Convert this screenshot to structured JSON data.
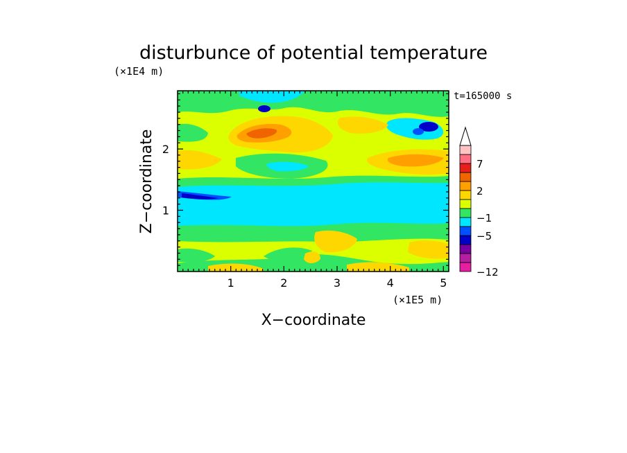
{
  "chart_data": {
    "type": "heatmap",
    "title": "disturbunce of potential temperature",
    "xlabel": "X−coordinate",
    "ylabel": "Z−coordinate",
    "x_unit": "(×1E5 m)",
    "y_unit": "(×1E4 m)",
    "time_label": "t=165000 s",
    "xlim": [
      0,
      5.1
    ],
    "ylim": [
      0,
      2.95
    ],
    "x_ticks": [
      "1",
      "2",
      "3",
      "4",
      "5"
    ],
    "y_ticks": [
      "1",
      "2"
    ],
    "colorbar": {
      "colors": [
        "#e61ea0",
        "#b41ea0",
        "#7800a0",
        "#0000c8",
        "#0050ff",
        "#00e6ff",
        "#32e664",
        "#dcff00",
        "#ffd700",
        "#ffa000",
        "#f06400",
        "#e61e1e",
        "#ff6e82",
        "#ffc3c3"
      ],
      "labels": [
        "−12",
        "−5",
        "−1",
        "2",
        "7"
      ],
      "extend": "max"
    }
  }
}
